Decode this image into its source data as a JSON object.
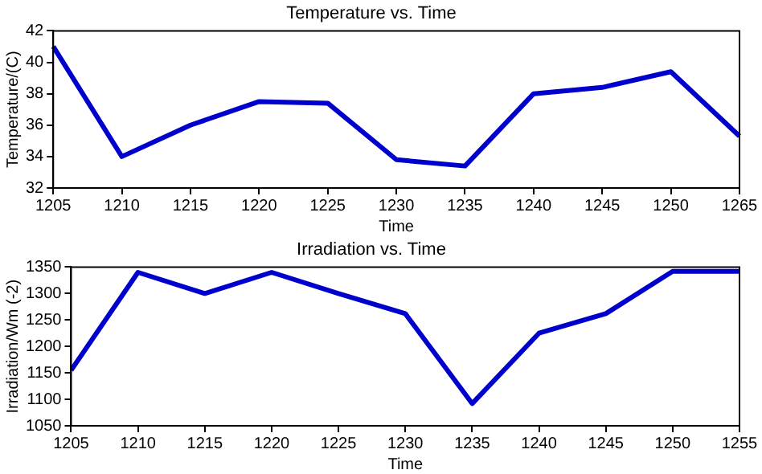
{
  "chart_data": [
    {
      "type": "line",
      "title": "Temperature vs. Time",
      "xlabel": "Time",
      "ylabel": "Temperature/(C)",
      "categories": [
        "1205",
        "1210",
        "1215",
        "1220",
        "1225",
        "1230",
        "1235",
        "1240",
        "1245",
        "1250",
        "1265"
      ],
      "series": [
        {
          "color": "#0000cc",
          "values": [
            41,
            34,
            36,
            37.5,
            37.4,
            33.8,
            33.4,
            38,
            38.4,
            39.4,
            35.3
          ]
        }
      ],
      "ylim": [
        32,
        42
      ],
      "yticks": [
        32,
        34,
        36,
        38,
        40,
        42
      ],
      "grid": false,
      "legend": false,
      "marker": "none",
      "line_style": "solid"
    },
    {
      "type": "line",
      "title": "Irradiation vs. Time",
      "xlabel": "Time",
      "ylabel": "Irradiation/Wm (-2)",
      "x": [
        1205,
        1210,
        1215,
        1220,
        1225,
        1230,
        1235,
        1240,
        1245,
        1250,
        1255
      ],
      "series": [
        {
          "color": "#0000cc",
          "values": [
            1155,
            1340,
            1300,
            1340,
            1300,
            1262,
            1092,
            1225,
            1262,
            1342,
            1342
          ]
        }
      ],
      "xlim": [
        1205,
        1255
      ],
      "xticks": [
        1205,
        1210,
        1215,
        1220,
        1225,
        1230,
        1235,
        1240,
        1245,
        1250,
        1255
      ],
      "ylim": [
        1050,
        1350
      ],
      "yticks": [
        1050,
        1100,
        1150,
        1200,
        1250,
        1300,
        1350
      ],
      "grid": false,
      "legend": false,
      "marker": "none",
      "line_style": "solid"
    }
  ]
}
